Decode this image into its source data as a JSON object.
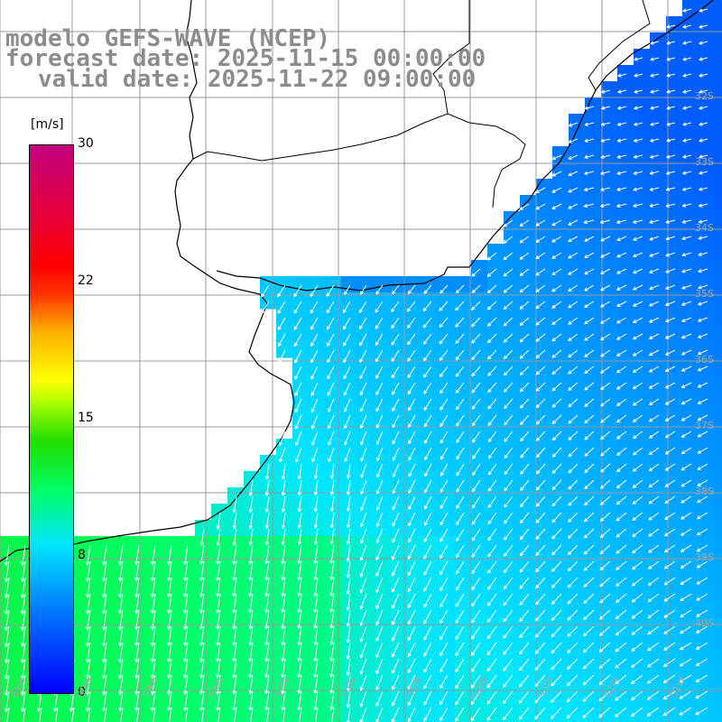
{
  "title": {
    "line1": "modelo GEFS-WAVE (NCEP)",
    "line2": "forecast date: 2025-11-15 00:00:00",
    "line3": "valid date: 2025-11-22 09:00:00"
  },
  "colorbar": {
    "units": "[m/s]",
    "labels": [
      "30",
      "22",
      "15",
      "8",
      "0"
    ],
    "min": 0,
    "max": 30,
    "colors": [
      "#0000ff",
      "#00e5ff",
      "#22dd00",
      "#ffff00",
      "#ff0000",
      "#c2007e"
    ]
  },
  "map": {
    "land_color": "#ffffff",
    "coast_color": "#000000",
    "grid_color": "#9a9a9a",
    "arrow_color": "#ffffff",
    "lat_labels": [
      "32S",
      "33S",
      "34S",
      "35S",
      "36S",
      "37S",
      "38S",
      "39S",
      "40S"
    ],
    "lon_labels": [
      "61W",
      "60W",
      "59W",
      "58W",
      "57W",
      "56W",
      "55W",
      "54W",
      "53W",
      "52W",
      "51W"
    ]
  }
}
